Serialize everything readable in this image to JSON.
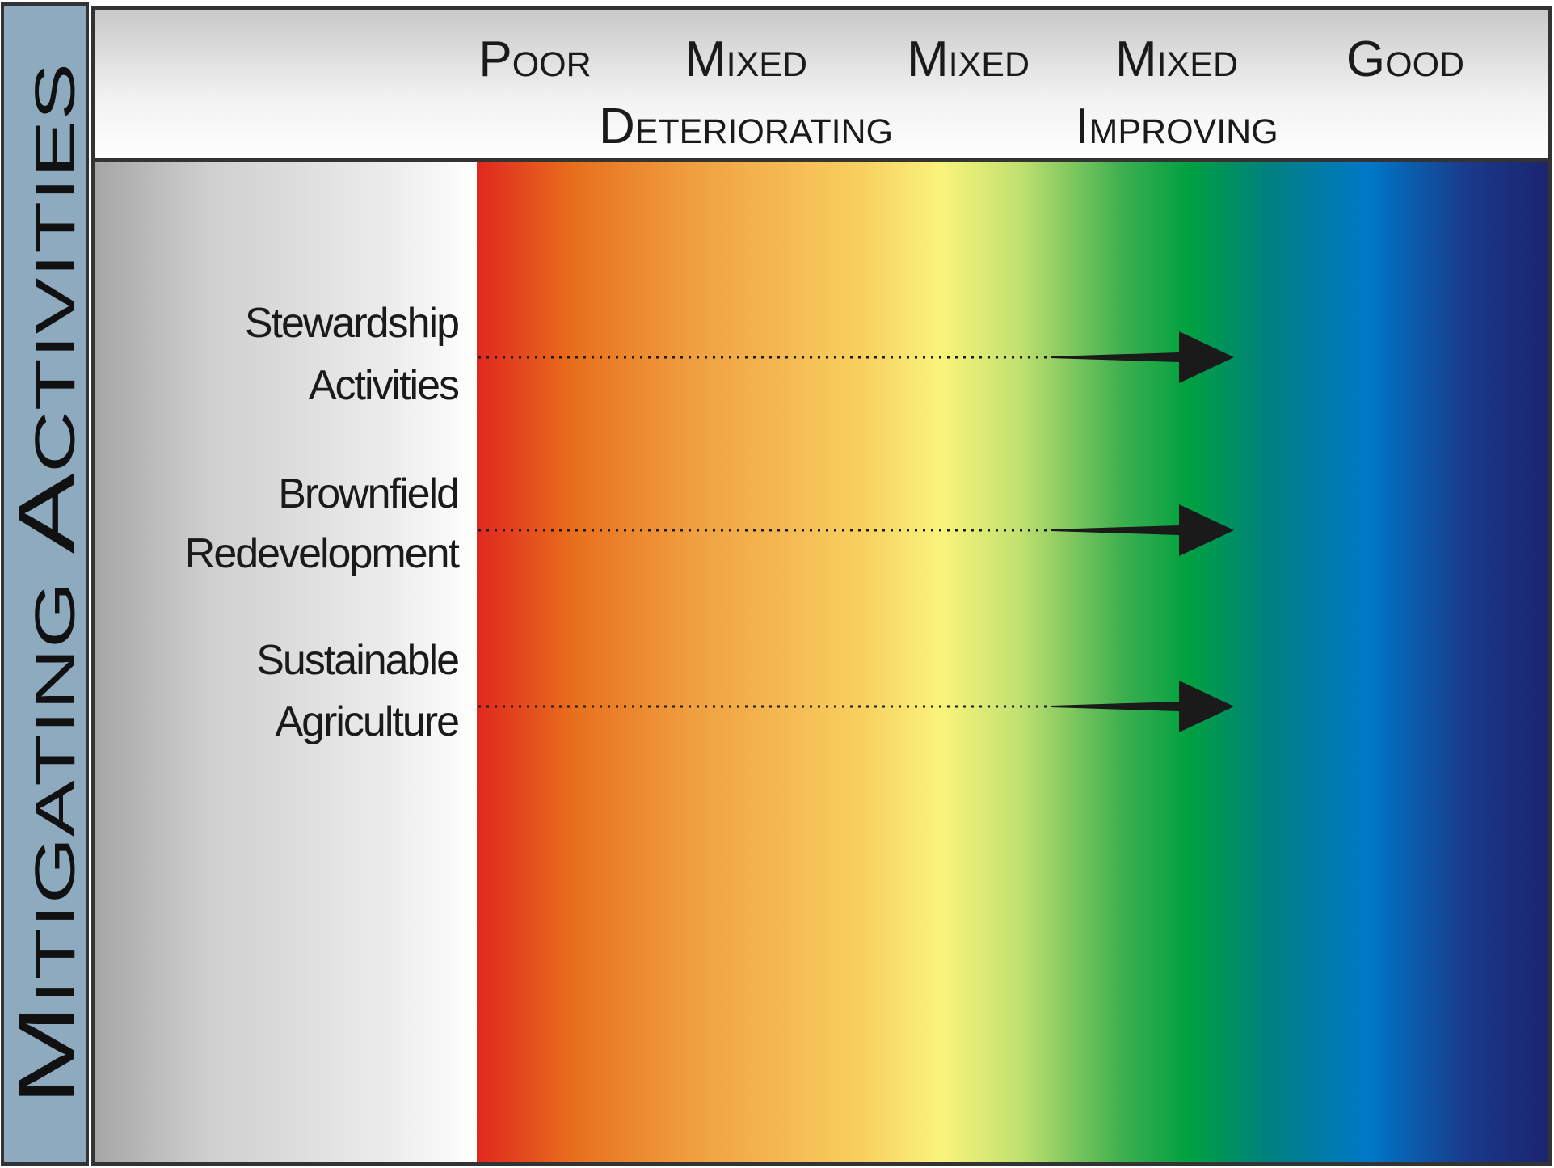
{
  "side_label": "Mitigating Activities",
  "header": {
    "columns": [
      {
        "lines": [
          "Poor"
        ]
      },
      {
        "lines": [
          "Mixed",
          "Deteriorating"
        ]
      },
      {
        "lines": [
          "Mixed"
        ]
      },
      {
        "lines": [
          "Mixed",
          "Improving"
        ]
      },
      {
        "lines": [
          "Good"
        ]
      }
    ]
  },
  "rows": [
    {
      "lines": [
        "Stewardship",
        "Activities"
      ]
    },
    {
      "lines": [
        "Brownfield",
        "Redevelopment"
      ]
    },
    {
      "lines": [
        "Sustainable",
        "Agriculture"
      ]
    }
  ]
}
